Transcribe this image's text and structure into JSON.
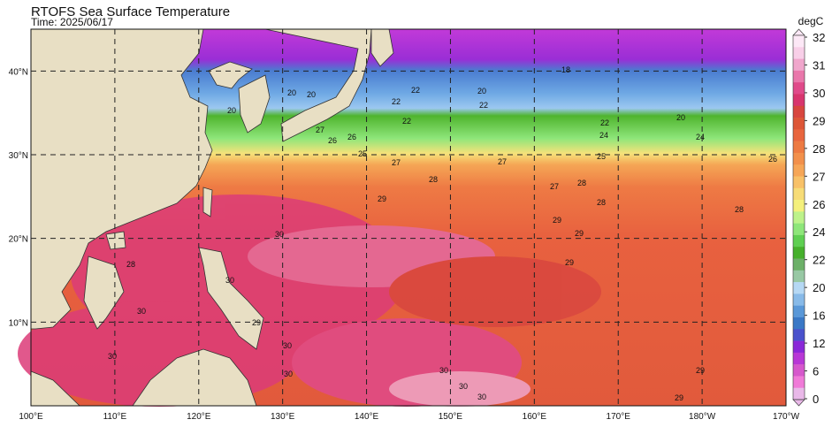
{
  "header": {
    "title": "RTOFS Sea Surface Temperature",
    "time": "Time: 2025/06/17"
  },
  "colorbar": {
    "unit": "degC",
    "ticks": [
      32,
      31,
      30,
      29,
      28,
      27,
      26,
      24,
      22,
      20,
      16,
      12,
      6,
      0
    ],
    "colors": [
      "#fce8f6",
      "#f8cfe8",
      "#f0a6cc",
      "#e977ab",
      "#e04a8a",
      "#d8356e",
      "#d8463f",
      "#dd5637",
      "#e8653e",
      "#ed7a42",
      "#f2904b",
      "#f6a657",
      "#f8c168",
      "#f7dc77",
      "#f4f07c",
      "#bdf28a",
      "#8ee67a",
      "#5fcf52",
      "#46b02c",
      "#6cb068",
      "#98c8a4",
      "#b6d8f4",
      "#88bae8",
      "#5a98d8",
      "#3a78c6",
      "#4a52cc",
      "#8a28d8",
      "#b838d6",
      "#d658cc",
      "#f07ad8",
      "#e9b8e8"
    ]
  },
  "x_labels": [
    "100°E",
    "110°E",
    "120°E",
    "130°E",
    "140°E",
    "150°E",
    "160°E",
    "170°E",
    "180°W",
    "170°W"
  ],
  "y_labels": [
    "10°N",
    "20°N",
    "30°N",
    "40°N"
  ],
  "contour_labels": [
    "20",
    "20",
    "20",
    "22",
    "22",
    "20",
    "22",
    "22",
    "18",
    "22",
    "24",
    "20",
    "24",
    "27",
    "26",
    "26",
    "25",
    "27",
    "27",
    "25",
    "26",
    "28",
    "27",
    "28",
    "28",
    "29",
    "29",
    "29",
    "29",
    "28",
    "30",
    "28",
    "30",
    "30",
    "30",
    "30",
    "30",
    "30",
    "30",
    "29",
    "29",
    "30",
    "29"
  ]
}
